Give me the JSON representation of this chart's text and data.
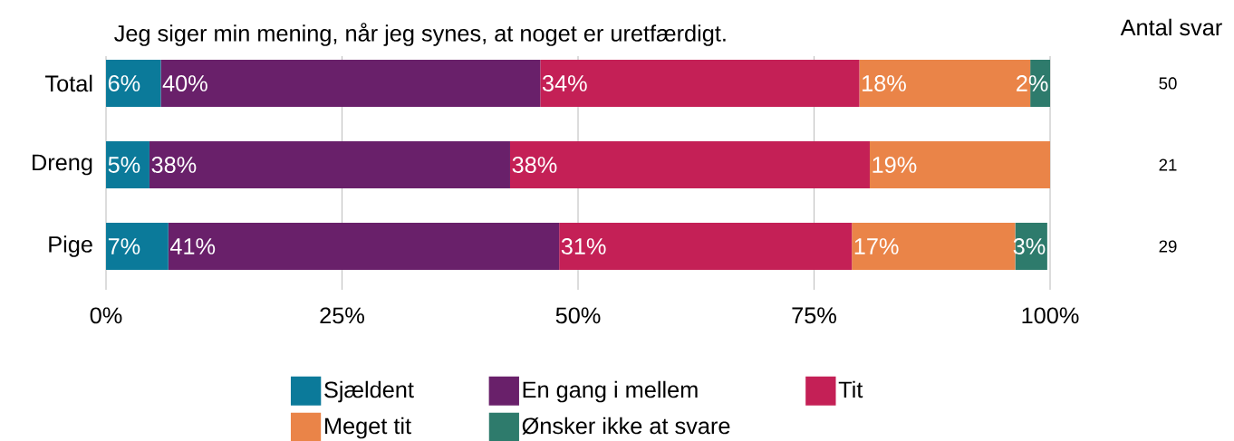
{
  "chart_data": {
    "type": "bar",
    "orientation": "horizontal",
    "stacked": true,
    "title": "Jeg siger min mening, når jeg synes, at noget er uretfærdigt.",
    "categories": [
      "Total",
      "Dreng",
      "Pige"
    ],
    "series": [
      {
        "name": "Sjældent",
        "color": "#0b7a9a",
        "values": [
          5.8,
          4.6,
          6.6
        ],
        "value_labels": [
          "6%",
          "5%",
          "7%"
        ]
      },
      {
        "name": "En gang i mellem",
        "color": "#69206a",
        "values": [
          40.2,
          38.2,
          41.4
        ],
        "value_labels": [
          "40%",
          "38%",
          "41%"
        ]
      },
      {
        "name": "Tit",
        "color": "#c42056",
        "values": [
          33.8,
          38.1,
          31.0
        ],
        "value_labels": [
          "34%",
          "38%",
          "31%"
        ]
      },
      {
        "name": "Meget tit",
        "color": "#ea8448",
        "values": [
          18.1,
          19.2,
          17.3
        ],
        "value_labels": [
          "18%",
          "19%",
          "17%"
        ]
      },
      {
        "name": "Ønsker ikke at svare",
        "color": "#2e7b6c",
        "values": [
          2.1,
          0,
          3.4
        ],
        "value_labels": [
          "2%",
          null,
          "3%"
        ]
      }
    ],
    "xlim": [
      0,
      100
    ],
    "xticks": [
      {
        "value": 0,
        "label": "0%"
      },
      {
        "value": 25,
        "label": "25%"
      },
      {
        "value": 50,
        "label": "50%"
      },
      {
        "value": 75,
        "label": "75%"
      },
      {
        "value": 100,
        "label": "100%"
      }
    ],
    "grid": "x",
    "legend": "bottom",
    "annotations": [
      "Antal svar",
      "50",
      "21",
      "29"
    ]
  }
}
